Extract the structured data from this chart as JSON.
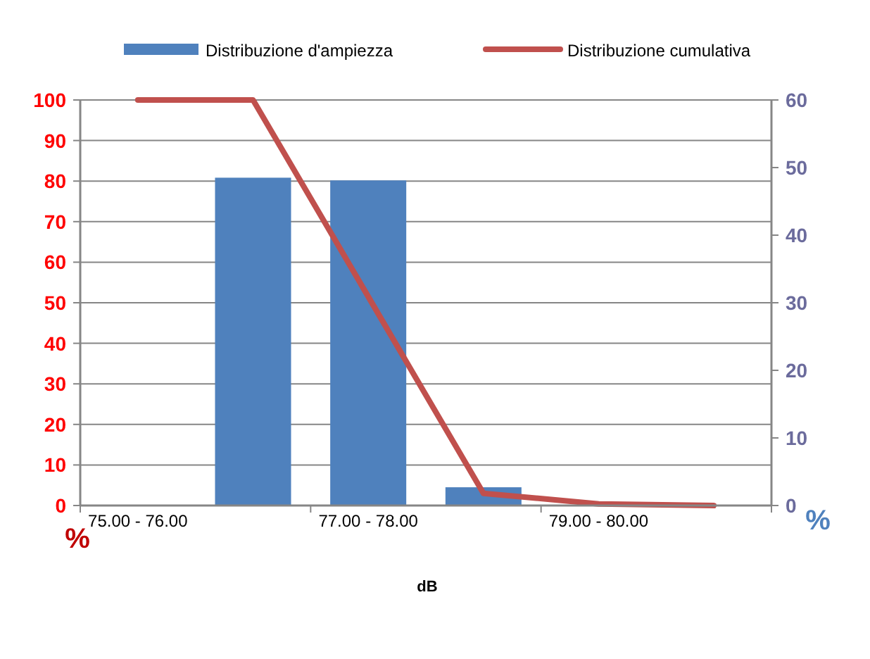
{
  "chart_data": {
    "type": "bar",
    "categories": [
      "75.00 - 76.00",
      null,
      "77.00 - 78.00",
      null,
      "79.00 - 80.00",
      null
    ],
    "series": [
      {
        "name": "Distribuzione d'ampiezza",
        "axis": "y2",
        "color": "#4f81bd",
        "values": [
          0,
          48.5,
          48.1,
          2.7,
          0,
          0
        ]
      },
      {
        "name": "Distribuzione cumulativa",
        "type": "line",
        "axis": "y",
        "color": "#c0504d",
        "values": [
          100,
          100,
          51.5,
          3,
          0.4,
          0
        ]
      }
    ],
    "xlabel": "dB",
    "ylabel": "%",
    "y2label": "%",
    "ylim": [
      0,
      100
    ],
    "yticks": [
      0,
      10,
      20,
      30,
      40,
      50,
      60,
      70,
      80,
      90,
      100
    ],
    "y2lim": [
      0,
      60
    ],
    "y2ticks": [
      0,
      10,
      20,
      30,
      40,
      50,
      60
    ],
    "grid": "y",
    "legend": "top",
    "marker": "none"
  }
}
